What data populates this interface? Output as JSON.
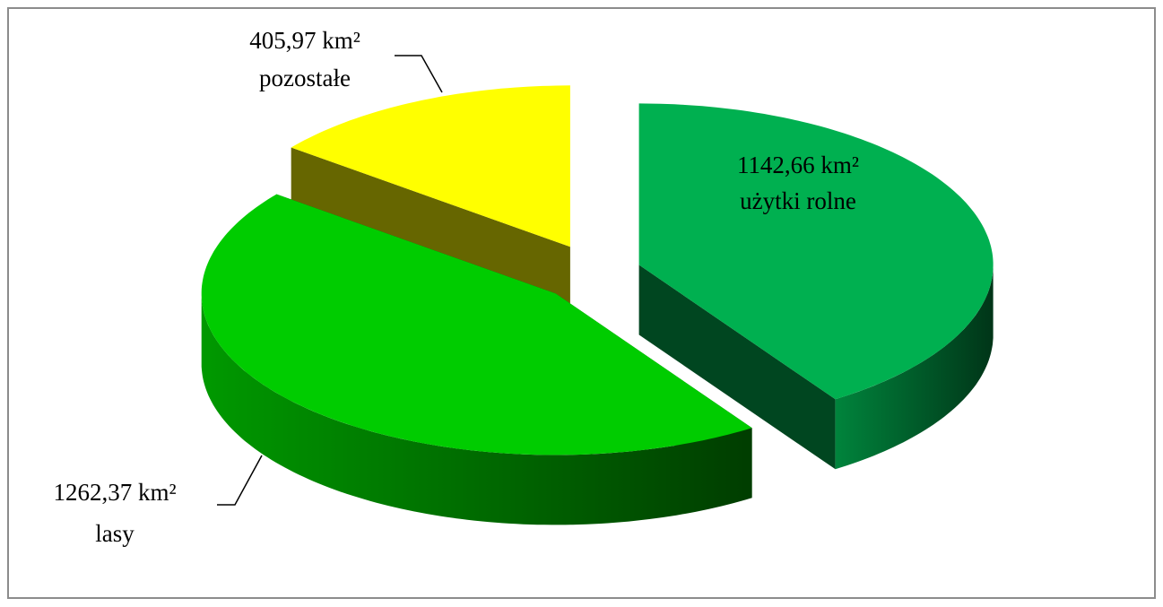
{
  "chart_data": {
    "type": "pie3d",
    "categories": [
      "użytki rolne",
      "lasy",
      "pozostałe"
    ],
    "values": [
      1142.66,
      1262.37,
      405.97
    ],
    "value_labels": [
      "1142,66 km²",
      "1262,37 km²",
      "405,97 km²"
    ],
    "colors": [
      "#00b050",
      "#00cc00",
      "#ffff00"
    ]
  }
}
